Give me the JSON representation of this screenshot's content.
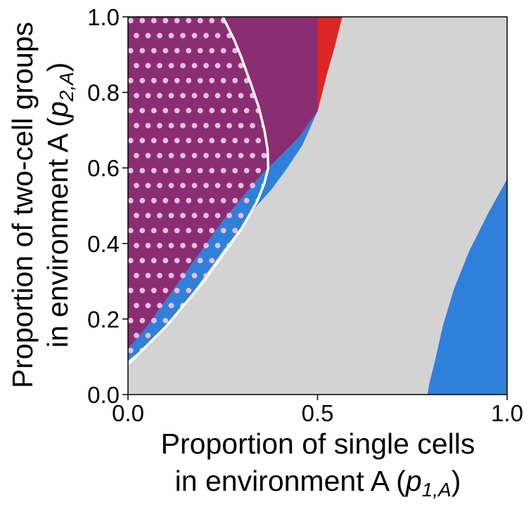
{
  "chart_data": {
    "type": "heatmap",
    "xlabel_lines": [
      "Proportion of single cells",
      "in environment A ("
    ],
    "xlabel_symbol": "p",
    "xlabel_subscript": "1,A",
    "xlabel_close": ")",
    "ylabel_lines": [
      "Proportion of two-cell groups",
      "in environment A ("
    ],
    "ylabel_symbol": "p",
    "ylabel_subscript": "2,A",
    "ylabel_close": ")",
    "xlim": [
      0.0,
      1.0
    ],
    "ylim": [
      0.0,
      1.0
    ],
    "x_ticks": [
      {
        "value": 0.0,
        "label": "0.0"
      },
      {
        "value": 0.5,
        "label": "0.5"
      },
      {
        "value": 1.0,
        "label": "1.0"
      }
    ],
    "y_ticks": [
      {
        "value": 0.0,
        "label": "0.0"
      },
      {
        "value": 0.2,
        "label": "0.2"
      },
      {
        "value": 0.4,
        "label": "0.4"
      },
      {
        "value": 0.6,
        "label": "0.6"
      },
      {
        "value": 0.8,
        "label": "0.8"
      },
      {
        "value": 1.0,
        "label": "1.0"
      }
    ],
    "grid": false,
    "colors": {
      "background_region": "#d3d3d3",
      "purple_region": "#8b2d73",
      "blue_region": "#2f80da",
      "red_region": "#dc2525",
      "boundary_line": "#ffffff",
      "dots": "#e8bfe0"
    },
    "regions": [
      {
        "id": "purple",
        "color": "purple_region",
        "points": [
          [
            0,
            1
          ],
          [
            0.5,
            1
          ],
          [
            0.5,
            0.75
          ],
          [
            0.45,
            0.68
          ],
          [
            0.4,
            0.63
          ],
          [
            0.35,
            0.58
          ],
          [
            0.3,
            0.52
          ],
          [
            0.25,
            0.46
          ],
          [
            0.2,
            0.39
          ],
          [
            0.15,
            0.32
          ],
          [
            0.1,
            0.25
          ],
          [
            0.05,
            0.18
          ],
          [
            0,
            0.12
          ]
        ]
      },
      {
        "id": "blue-left",
        "color": "blue_region",
        "points": [
          [
            0,
            0.12
          ],
          [
            0.05,
            0.18
          ],
          [
            0.1,
            0.25
          ],
          [
            0.15,
            0.32
          ],
          [
            0.2,
            0.39
          ],
          [
            0.25,
            0.46
          ],
          [
            0.3,
            0.52
          ],
          [
            0.35,
            0.58
          ],
          [
            0.4,
            0.63
          ],
          [
            0.45,
            0.68
          ],
          [
            0.5,
            0.75
          ],
          [
            0.46,
            0.66
          ],
          [
            0.42,
            0.6
          ],
          [
            0.38,
            0.545
          ],
          [
            0.34,
            0.5
          ],
          [
            0.3,
            0.445
          ],
          [
            0.25,
            0.38
          ],
          [
            0.2,
            0.31
          ],
          [
            0.15,
            0.24
          ],
          [
            0.1,
            0.18
          ],
          [
            0.05,
            0.13
          ],
          [
            0,
            0.09
          ]
        ]
      },
      {
        "id": "red",
        "color": "red_region",
        "points": [
          [
            0.5,
            1
          ],
          [
            0.565,
            1
          ],
          [
            0.545,
            0.92
          ],
          [
            0.525,
            0.85
          ],
          [
            0.5,
            0.75
          ]
        ]
      },
      {
        "id": "blue-right",
        "color": "blue_region",
        "points": [
          [
            0.79,
            0
          ],
          [
            1,
            0
          ],
          [
            1,
            0.57
          ],
          [
            0.95,
            0.48
          ],
          [
            0.9,
            0.38
          ],
          [
            0.86,
            0.28
          ],
          [
            0.83,
            0.18
          ],
          [
            0.81,
            0.09
          ],
          [
            0.795,
            0.03
          ]
        ]
      }
    ],
    "boundary_curve": [
      [
        0,
        0.08
      ],
      [
        0.05,
        0.13
      ],
      [
        0.1,
        0.18
      ],
      [
        0.15,
        0.24
      ],
      [
        0.2,
        0.3
      ],
      [
        0.25,
        0.37
      ],
      [
        0.3,
        0.44
      ],
      [
        0.34,
        0.51
      ],
      [
        0.36,
        0.56
      ],
      [
        0.37,
        0.6
      ],
      [
        0.368,
        0.65
      ],
      [
        0.36,
        0.7
      ],
      [
        0.345,
        0.76
      ],
      [
        0.325,
        0.82
      ],
      [
        0.3,
        0.89
      ],
      [
        0.28,
        0.94
      ],
      [
        0.25,
        1.0
      ]
    ],
    "dot_grid": {
      "x_start": 0.007,
      "x_step": 0.0306,
      "y_start": 0.99,
      "y_step": 0.0397,
      "radius_fraction": 0.0072
    }
  }
}
